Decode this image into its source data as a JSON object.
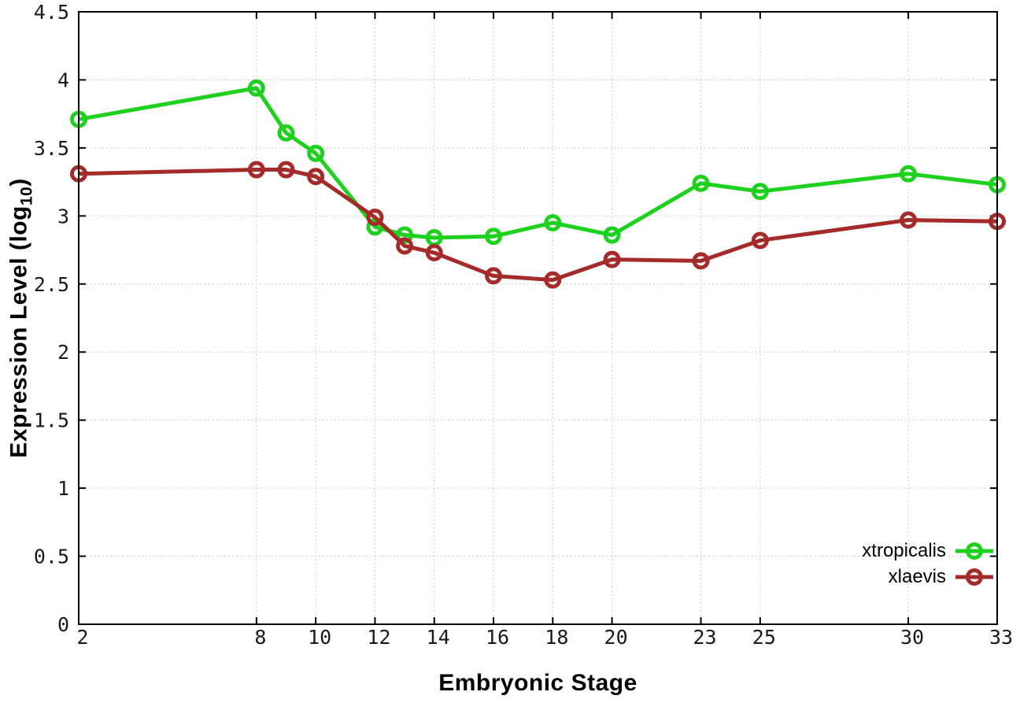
{
  "chart_data": {
    "type": "line",
    "title": "",
    "xlabel": "Embryonic Stage",
    "ylabel": "Expression Level (log₁₀)",
    "ylabel_parts": {
      "prefix": "Expression Level (log",
      "subscript": "10",
      "suffix": ")"
    },
    "x": [
      2,
      8,
      9,
      10,
      12,
      13,
      14,
      16,
      18,
      20,
      23,
      25,
      30,
      33
    ],
    "series": [
      {
        "name": "xtropicalis",
        "color": "#1fd11f",
        "values": [
          3.71,
          3.94,
          3.61,
          3.46,
          2.92,
          2.86,
          2.84,
          2.85,
          2.95,
          2.86,
          3.24,
          3.18,
          3.31,
          3.23
        ]
      },
      {
        "name": "xlaevis",
        "color": "#a52a2a",
        "values": [
          3.31,
          3.34,
          3.34,
          3.29,
          2.99,
          2.78,
          2.73,
          2.56,
          2.53,
          2.68,
          2.67,
          2.82,
          2.97,
          2.96
        ]
      }
    ],
    "xlim": [
      2,
      33
    ],
    "ylim": [
      0,
      4.5
    ],
    "xticks": [
      2,
      8,
      10,
      12,
      14,
      16,
      18,
      20,
      23,
      25,
      30,
      33
    ],
    "xtick_labels": [
      "2",
      "8",
      "10",
      "12",
      "14",
      "16",
      "18",
      "20",
      "23",
      "25",
      "30",
      "33"
    ],
    "yticks": [
      0,
      0.5,
      1,
      1.5,
      2,
      2.5,
      3,
      3.5,
      4,
      4.5
    ],
    "ytick_labels": [
      "0",
      "0.5",
      "1",
      "1.5",
      "2",
      "2.5",
      "3",
      "3.5",
      "4",
      "4.5"
    ],
    "grid": true,
    "grid_style": "dotted",
    "grid_color": "#bdbdbd",
    "axis_color": "#000000",
    "tick_label_color": "#1a1a1a",
    "marker": "open-circle",
    "legend_position": "inside-bottom-right",
    "legend_entries": [
      "xtropicalis",
      "xlaevis"
    ]
  }
}
